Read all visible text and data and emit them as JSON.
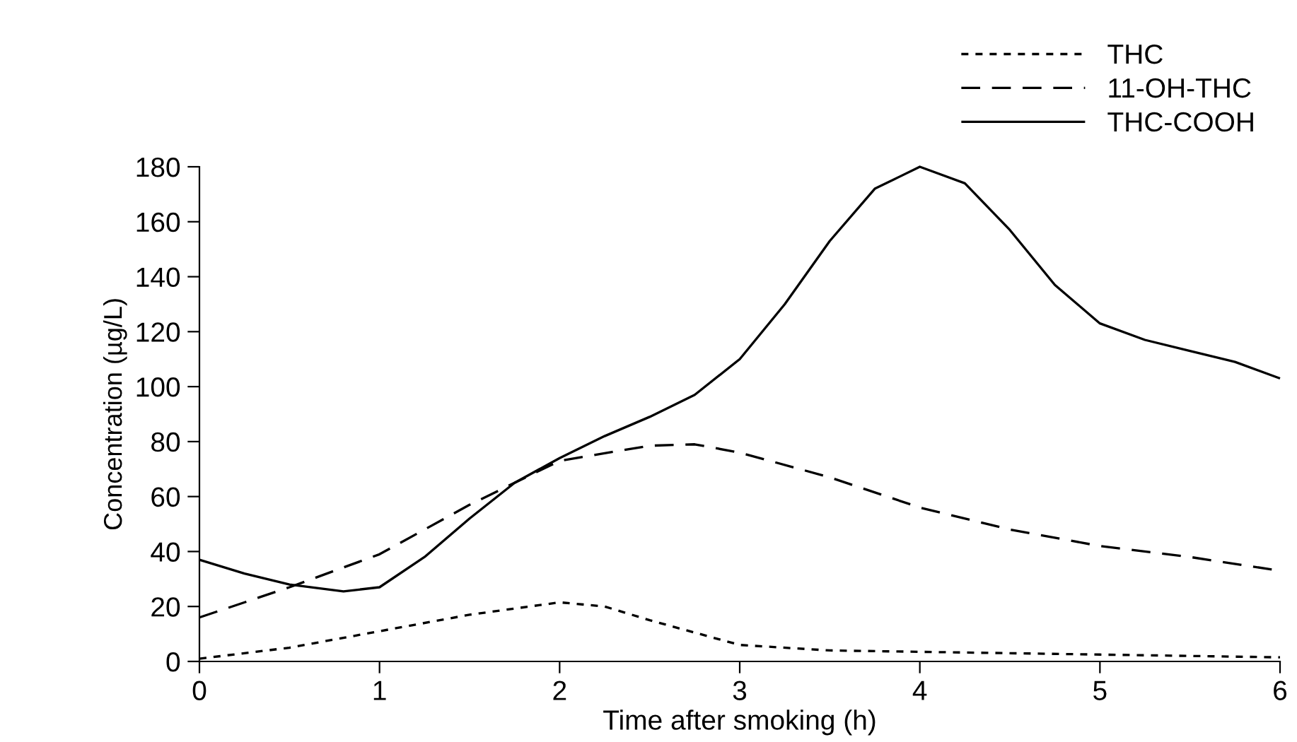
{
  "chart_data": {
    "type": "line",
    "xlabel": "Time after smoking (h)",
    "ylabel": "Concentration (µg/L)",
    "xlim": [
      0,
      6
    ],
    "xticks": [
      0,
      1,
      2,
      3,
      4,
      5,
      6
    ],
    "ylim": [
      0,
      180
    ],
    "yticks": [
      0,
      20,
      40,
      60,
      80,
      100,
      120,
      140,
      160,
      180
    ],
    "grid": false,
    "legend": "top right",
    "series": [
      {
        "name": "THC",
        "color": "#000000",
        "line_style": "dotted",
        "x": [
          0,
          0.5,
          1,
          1.5,
          2,
          2.25,
          2.5,
          3,
          3.5,
          4,
          5,
          6
        ],
        "values": [
          1,
          5,
          11,
          17,
          21.5,
          20,
          15,
          6,
          4,
          3.5,
          2.5,
          1.5
        ]
      },
      {
        "name": "11-OH-THC",
        "color": "#000000",
        "line_style": "dashed",
        "x": [
          0,
          0.5,
          1,
          1.5,
          2,
          2.5,
          2.75,
          3,
          3.5,
          4,
          4.5,
          5,
          5.5,
          6
        ],
        "values": [
          16,
          27,
          39,
          57,
          73,
          78.5,
          79,
          76,
          67,
          56,
          48,
          42,
          38,
          33
        ]
      },
      {
        "name": "THC-COOH",
        "color": "#000000",
        "line_style": "solid",
        "x": [
          0,
          0.25,
          0.5,
          0.8,
          1,
          1.25,
          1.5,
          1.75,
          2,
          2.25,
          2.5,
          2.75,
          3,
          3.25,
          3.5,
          3.75,
          4,
          4.25,
          4.5,
          4.75,
          5,
          5.25,
          5.5,
          5.75,
          6
        ],
        "values": [
          37,
          32,
          28,
          25.5,
          27,
          38,
          52,
          65,
          74,
          82,
          89,
          97,
          110,
          130,
          153,
          172,
          180,
          174,
          157,
          137,
          123,
          117,
          113,
          109,
          103
        ]
      }
    ]
  }
}
